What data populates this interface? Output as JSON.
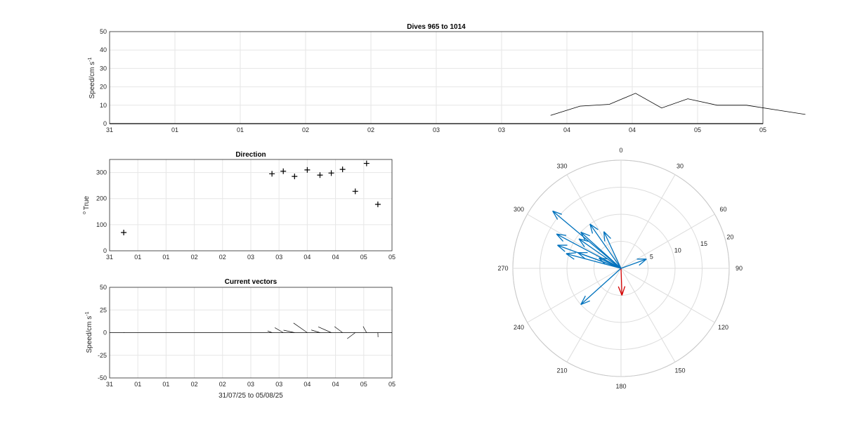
{
  "chart_data": [
    {
      "id": "speed",
      "type": "line",
      "title": "Dives 965 to 1014",
      "ylabel": "Speed/cm s",
      "ylabel_sup": "-1",
      "xlabel": "",
      "ylim": [
        0,
        50
      ],
      "yticks": [
        "0",
        "10",
        "20",
        "30",
        "40",
        "50"
      ],
      "xticks": [
        "31",
        "01",
        "01",
        "02",
        "02",
        "03",
        "03",
        "04",
        "04",
        "05",
        "05"
      ],
      "x": [
        6.75,
        7.2,
        7.65,
        8.05,
        8.45,
        8.85,
        9.3,
        9.75,
        10.2,
        10.65
      ],
      "y": [
        4.5,
        9.5,
        10.5,
        16.5,
        8.5,
        13.5,
        10.0,
        10.0,
        7.5,
        5.0
      ],
      "grid": true
    },
    {
      "id": "direction",
      "type": "scatter",
      "title": "Direction",
      "ylabel": "True",
      "ylabel_sup": "o",
      "xlabel": "",
      "ylim": [
        0,
        350
      ],
      "yticks": [
        "0",
        "100",
        "200",
        "300"
      ],
      "xticks": [
        "31",
        "01",
        "01",
        "02",
        "02",
        "03",
        "03",
        "04",
        "04",
        "05",
        "05"
      ],
      "x": [
        0.5,
        5.75,
        6.15,
        6.55,
        7.0,
        7.45,
        7.85,
        8.25,
        8.7,
        9.1,
        9.5
      ],
      "y": [
        70,
        295,
        305,
        285,
        310,
        290,
        298,
        312,
        228,
        335,
        178
      ],
      "grid": true
    },
    {
      "id": "vectors",
      "type": "quiver",
      "title": "Current vectors",
      "ylabel": "Speed/cm s",
      "ylabel_sup": "-1",
      "xlabel": "31/07/25 to 05/08/25",
      "ylim": [
        -50,
        50
      ],
      "yticks": [
        "-50",
        "-25",
        "0",
        "25",
        "50"
      ],
      "xticks": [
        "31",
        "01",
        "01",
        "02",
        "02",
        "03",
        "03",
        "04",
        "04",
        "05",
        "05"
      ],
      "x": [
        0.5,
        5.75,
        6.15,
        6.55,
        7.0,
        7.45,
        7.85,
        8.25,
        8.7,
        9.1,
        9.5
      ],
      "speed": [
        0.5,
        4.5,
        9.5,
        10.5,
        16.5,
        8.5,
        13.5,
        10.0,
        10.0,
        7.5,
        5.0
      ],
      "direction": [
        70,
        295,
        305,
        285,
        310,
        290,
        298,
        312,
        228,
        335,
        178
      ],
      "grid": true
    },
    {
      "id": "polar",
      "type": "polar_compass",
      "angle_labels": [
        "0",
        "30",
        "60",
        "90",
        "120",
        "150",
        "180",
        "210",
        "240",
        "270",
        "300",
        "330"
      ],
      "radial_labels": [
        "5",
        "10",
        "15",
        "20"
      ],
      "rmax": 20,
      "speed": [
        4.5,
        9.5,
        10.5,
        16.5,
        8.5,
        13.5,
        10.0,
        10.0,
        7.5,
        5.0,
        5.0,
        10.0,
        12.5
      ],
      "direction": [
        295,
        305,
        285,
        310,
        290,
        298,
        312,
        228,
        335,
        178,
        70,
        325,
        290
      ],
      "highlight_index": 9
    }
  ],
  "colors": {
    "line": "#000000",
    "arrow": "#0072BD",
    "highlight": "#D40000",
    "grid": "#e6e6e6",
    "axis": "#262626"
  }
}
